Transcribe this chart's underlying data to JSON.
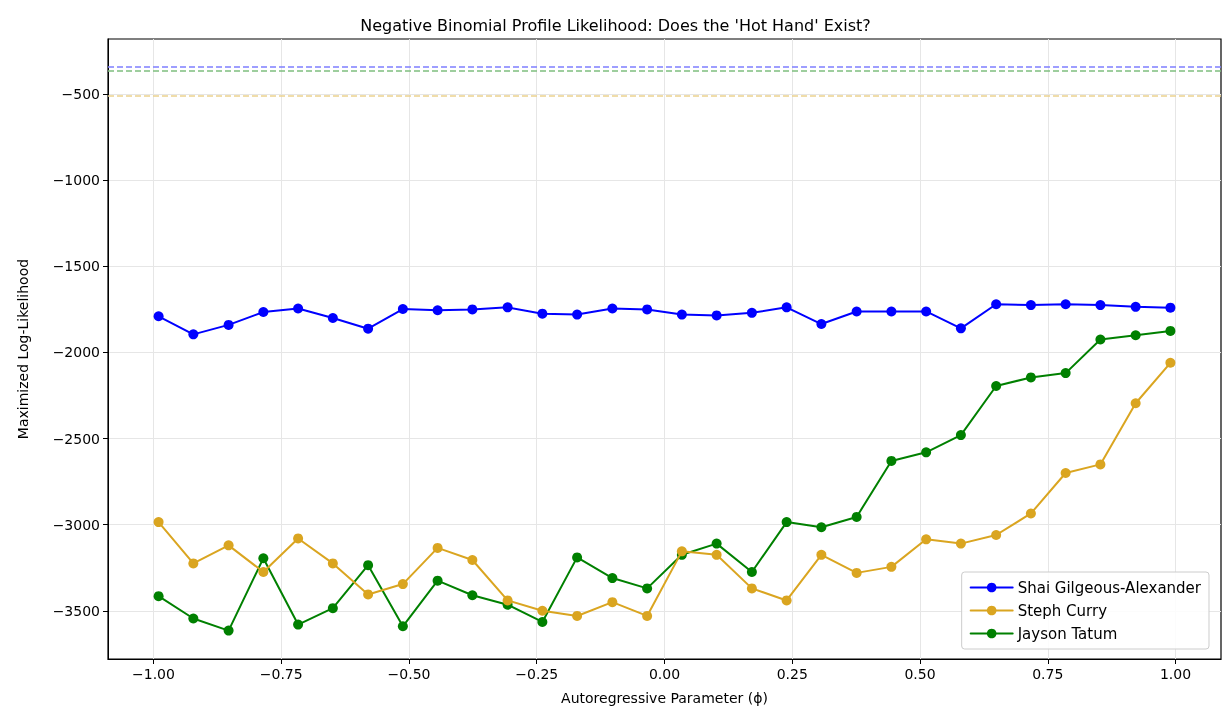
{
  "chart_data": {
    "type": "line",
    "title": "Negative Binomial Profile Likelihood: Does the 'Hot Hand' Exist?",
    "xlabel": "Autoregressive Parameter (ϕ)",
    "ylabel": "Maximized Log-Likelihood",
    "x": [
      -0.99,
      -0.922,
      -0.853,
      -0.785,
      -0.717,
      -0.649,
      -0.58,
      -0.512,
      -0.444,
      -0.376,
      -0.307,
      -0.239,
      -0.171,
      -0.102,
      -0.034,
      0.034,
      0.102,
      0.171,
      0.239,
      0.307,
      0.376,
      0.444,
      0.512,
      0.58,
      0.649,
      0.717,
      0.785,
      0.853,
      0.922,
      0.99
    ],
    "series": [
      {
        "name": "Shai Gilgeous-Alexander",
        "color": "#0000ff",
        "values": [
          -1790,
          -1895,
          -1840,
          -1765,
          -1745,
          -1800,
          -1862,
          -1748,
          -1755,
          -1750,
          -1738,
          -1775,
          -1780,
          -1745,
          -1750,
          -1780,
          -1785,
          -1770,
          -1738,
          -1835,
          -1762,
          -1762,
          -1762,
          -1860,
          -1720,
          -1725,
          -1720,
          -1725,
          -1735,
          -1740
        ]
      },
      {
        "name": "Steph Curry",
        "color": "#daa520",
        "values": [
          -2985,
          -3225,
          -3120,
          -3275,
          -3080,
          -3225,
          -3405,
          -3345,
          -3135,
          -3205,
          -3440,
          -3500,
          -3530,
          -3450,
          -3530,
          -3155,
          -3175,
          -3370,
          -3440,
          -3175,
          -3280,
          -3245,
          -3085,
          -3110,
          -3060,
          -2935,
          -2700,
          -2650,
          -2295,
          -2060
        ]
      },
      {
        "name": "Jayson Tatum",
        "color": "#008000",
        "values": [
          -3415,
          -3545,
          -3615,
          -3195,
          -3580,
          -3485,
          -3235,
          -3590,
          -3325,
          -3410,
          -3465,
          -3565,
          -3190,
          -3310,
          -3370,
          -3175,
          -3110,
          -3275,
          -2985,
          -3015,
          -2955,
          -2630,
          -2580,
          -2480,
          -2195,
          -2145,
          -2120,
          -1925,
          -1900,
          -1875
        ]
      }
    ],
    "ref_lines": [
      {
        "axis": "y",
        "value": -342,
        "color": "#7f7fff",
        "line_style": "dashed"
      },
      {
        "axis": "y",
        "value": -364,
        "color": "#7fbf7f",
        "line_style": "dashed"
      },
      {
        "axis": "y",
        "value": -511,
        "color": "#ecd28f",
        "line_style": "dashed"
      }
    ],
    "xlim": [
      -1.089,
      1.089
    ],
    "xticks": [
      {
        "value": -1,
        "label": "−1.00"
      },
      {
        "value": -0.75,
        "label": "−0.75"
      },
      {
        "value": -0.5,
        "label": "−0.50"
      },
      {
        "value": -0.25,
        "label": "−0.25"
      },
      {
        "value": 0,
        "label": "0.00"
      },
      {
        "value": 0.25,
        "label": "0.25"
      },
      {
        "value": 0.5,
        "label": "0.50"
      },
      {
        "value": 0.75,
        "label": "0.75"
      },
      {
        "value": 1,
        "label": "1.00"
      }
    ],
    "ylim": [
      -3780,
      -180
    ],
    "yticks": [
      {
        "value": -3500,
        "label": "−3500"
      },
      {
        "value": -3000,
        "label": "−3000"
      },
      {
        "value": -2500,
        "label": "−2500"
      },
      {
        "value": -2000,
        "label": "−2000"
      },
      {
        "value": -1500,
        "label": "−1500"
      },
      {
        "value": -1000,
        "label": "−1000"
      },
      {
        "value": -500,
        "label": "−500"
      }
    ],
    "grid": true,
    "legend": "bottom right",
    "marker": "circle",
    "line_style": "solid"
  }
}
